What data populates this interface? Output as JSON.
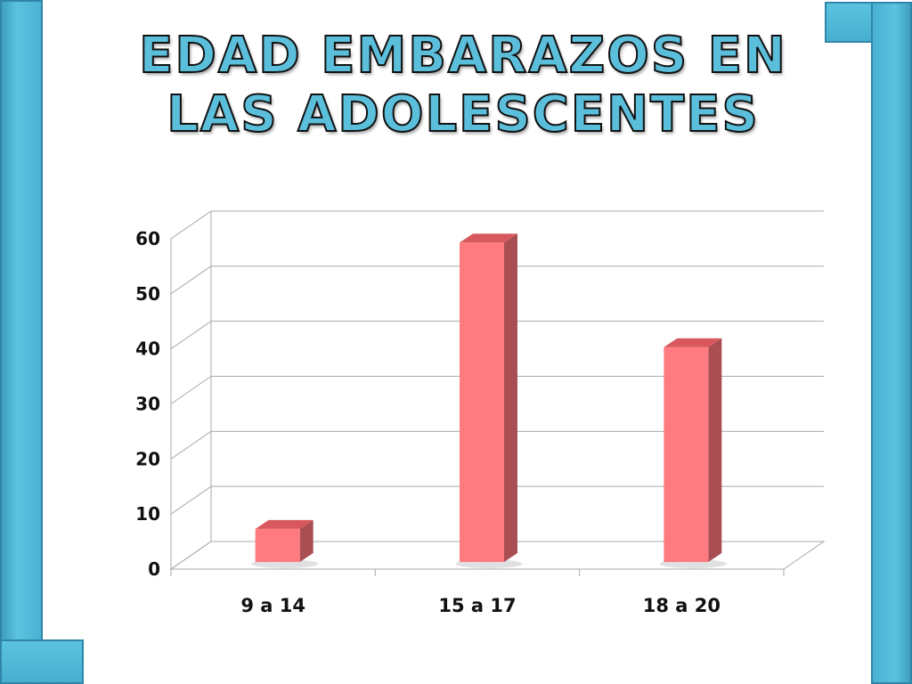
{
  "title": "Edad embarazos en las adolescentes",
  "colors": {
    "bar_front": "#ff7b80",
    "bar_side": "#a94e52",
    "bar_top": "#d9585e",
    "frame": "#55bad9",
    "grid": "#a9a9a9"
  },
  "chart_data": {
    "type": "bar",
    "title": "Edad embarazos en las adolescentes",
    "xlabel": "",
    "ylabel": "",
    "categories": [
      "9 a 14",
      "15 a 17",
      "18 a 20"
    ],
    "values": [
      6,
      58,
      39
    ],
    "ylim": [
      0,
      60
    ],
    "yticks": [
      0,
      10,
      20,
      30,
      40,
      50,
      60
    ],
    "grid": true,
    "style": "3d"
  }
}
